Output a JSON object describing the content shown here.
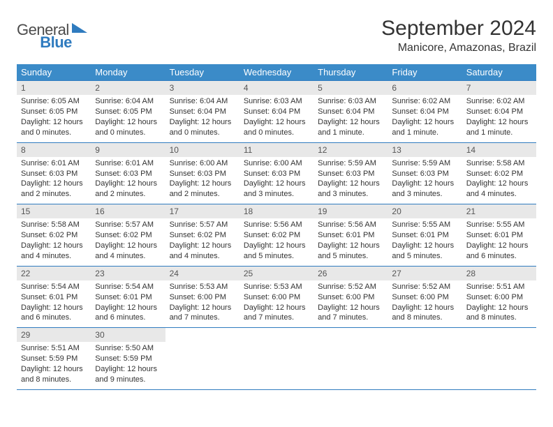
{
  "brand": {
    "general": "General",
    "blue": "Blue"
  },
  "title": "September 2024",
  "location": "Manicore, Amazonas, Brazil",
  "colors": {
    "header_bg": "#3b8bc8",
    "header_text": "#ffffff",
    "rule": "#2f7bbf",
    "daynum_bg": "#e8e8e8",
    "text": "#333333",
    "background": "#ffffff"
  },
  "calendar": {
    "type": "table",
    "weekdays": [
      "Sunday",
      "Monday",
      "Tuesday",
      "Wednesday",
      "Thursday",
      "Friday",
      "Saturday"
    ],
    "column_count": 7,
    "fonts": {
      "weekday_size_pt": 13,
      "daynum_size_pt": 12,
      "body_size_pt": 11,
      "title_size_pt": 30,
      "location_size_pt": 16
    },
    "weeks": [
      [
        {
          "n": "1",
          "sunrise": "Sunrise: 6:05 AM",
          "sunset": "Sunset: 6:05 PM",
          "daylight": "Daylight: 12 hours and 0 minutes."
        },
        {
          "n": "2",
          "sunrise": "Sunrise: 6:04 AM",
          "sunset": "Sunset: 6:05 PM",
          "daylight": "Daylight: 12 hours and 0 minutes."
        },
        {
          "n": "3",
          "sunrise": "Sunrise: 6:04 AM",
          "sunset": "Sunset: 6:04 PM",
          "daylight": "Daylight: 12 hours and 0 minutes."
        },
        {
          "n": "4",
          "sunrise": "Sunrise: 6:03 AM",
          "sunset": "Sunset: 6:04 PM",
          "daylight": "Daylight: 12 hours and 0 minutes."
        },
        {
          "n": "5",
          "sunrise": "Sunrise: 6:03 AM",
          "sunset": "Sunset: 6:04 PM",
          "daylight": "Daylight: 12 hours and 1 minute."
        },
        {
          "n": "6",
          "sunrise": "Sunrise: 6:02 AM",
          "sunset": "Sunset: 6:04 PM",
          "daylight": "Daylight: 12 hours and 1 minute."
        },
        {
          "n": "7",
          "sunrise": "Sunrise: 6:02 AM",
          "sunset": "Sunset: 6:04 PM",
          "daylight": "Daylight: 12 hours and 1 minute."
        }
      ],
      [
        {
          "n": "8",
          "sunrise": "Sunrise: 6:01 AM",
          "sunset": "Sunset: 6:03 PM",
          "daylight": "Daylight: 12 hours and 2 minutes."
        },
        {
          "n": "9",
          "sunrise": "Sunrise: 6:01 AM",
          "sunset": "Sunset: 6:03 PM",
          "daylight": "Daylight: 12 hours and 2 minutes."
        },
        {
          "n": "10",
          "sunrise": "Sunrise: 6:00 AM",
          "sunset": "Sunset: 6:03 PM",
          "daylight": "Daylight: 12 hours and 2 minutes."
        },
        {
          "n": "11",
          "sunrise": "Sunrise: 6:00 AM",
          "sunset": "Sunset: 6:03 PM",
          "daylight": "Daylight: 12 hours and 3 minutes."
        },
        {
          "n": "12",
          "sunrise": "Sunrise: 5:59 AM",
          "sunset": "Sunset: 6:03 PM",
          "daylight": "Daylight: 12 hours and 3 minutes."
        },
        {
          "n": "13",
          "sunrise": "Sunrise: 5:59 AM",
          "sunset": "Sunset: 6:03 PM",
          "daylight": "Daylight: 12 hours and 3 minutes."
        },
        {
          "n": "14",
          "sunrise": "Sunrise: 5:58 AM",
          "sunset": "Sunset: 6:02 PM",
          "daylight": "Daylight: 12 hours and 4 minutes."
        }
      ],
      [
        {
          "n": "15",
          "sunrise": "Sunrise: 5:58 AM",
          "sunset": "Sunset: 6:02 PM",
          "daylight": "Daylight: 12 hours and 4 minutes."
        },
        {
          "n": "16",
          "sunrise": "Sunrise: 5:57 AM",
          "sunset": "Sunset: 6:02 PM",
          "daylight": "Daylight: 12 hours and 4 minutes."
        },
        {
          "n": "17",
          "sunrise": "Sunrise: 5:57 AM",
          "sunset": "Sunset: 6:02 PM",
          "daylight": "Daylight: 12 hours and 4 minutes."
        },
        {
          "n": "18",
          "sunrise": "Sunrise: 5:56 AM",
          "sunset": "Sunset: 6:02 PM",
          "daylight": "Daylight: 12 hours and 5 minutes."
        },
        {
          "n": "19",
          "sunrise": "Sunrise: 5:56 AM",
          "sunset": "Sunset: 6:01 PM",
          "daylight": "Daylight: 12 hours and 5 minutes."
        },
        {
          "n": "20",
          "sunrise": "Sunrise: 5:55 AM",
          "sunset": "Sunset: 6:01 PM",
          "daylight": "Daylight: 12 hours and 5 minutes."
        },
        {
          "n": "21",
          "sunrise": "Sunrise: 5:55 AM",
          "sunset": "Sunset: 6:01 PM",
          "daylight": "Daylight: 12 hours and 6 minutes."
        }
      ],
      [
        {
          "n": "22",
          "sunrise": "Sunrise: 5:54 AM",
          "sunset": "Sunset: 6:01 PM",
          "daylight": "Daylight: 12 hours and 6 minutes."
        },
        {
          "n": "23",
          "sunrise": "Sunrise: 5:54 AM",
          "sunset": "Sunset: 6:01 PM",
          "daylight": "Daylight: 12 hours and 6 minutes."
        },
        {
          "n": "24",
          "sunrise": "Sunrise: 5:53 AM",
          "sunset": "Sunset: 6:00 PM",
          "daylight": "Daylight: 12 hours and 7 minutes."
        },
        {
          "n": "25",
          "sunrise": "Sunrise: 5:53 AM",
          "sunset": "Sunset: 6:00 PM",
          "daylight": "Daylight: 12 hours and 7 minutes."
        },
        {
          "n": "26",
          "sunrise": "Sunrise: 5:52 AM",
          "sunset": "Sunset: 6:00 PM",
          "daylight": "Daylight: 12 hours and 7 minutes."
        },
        {
          "n": "27",
          "sunrise": "Sunrise: 5:52 AM",
          "sunset": "Sunset: 6:00 PM",
          "daylight": "Daylight: 12 hours and 8 minutes."
        },
        {
          "n": "28",
          "sunrise": "Sunrise: 5:51 AM",
          "sunset": "Sunset: 6:00 PM",
          "daylight": "Daylight: 12 hours and 8 minutes."
        }
      ],
      [
        {
          "n": "29",
          "sunrise": "Sunrise: 5:51 AM",
          "sunset": "Sunset: 5:59 PM",
          "daylight": "Daylight: 12 hours and 8 minutes."
        },
        {
          "n": "30",
          "sunrise": "Sunrise: 5:50 AM",
          "sunset": "Sunset: 5:59 PM",
          "daylight": "Daylight: 12 hours and 9 minutes."
        },
        null,
        null,
        null,
        null,
        null
      ]
    ]
  }
}
